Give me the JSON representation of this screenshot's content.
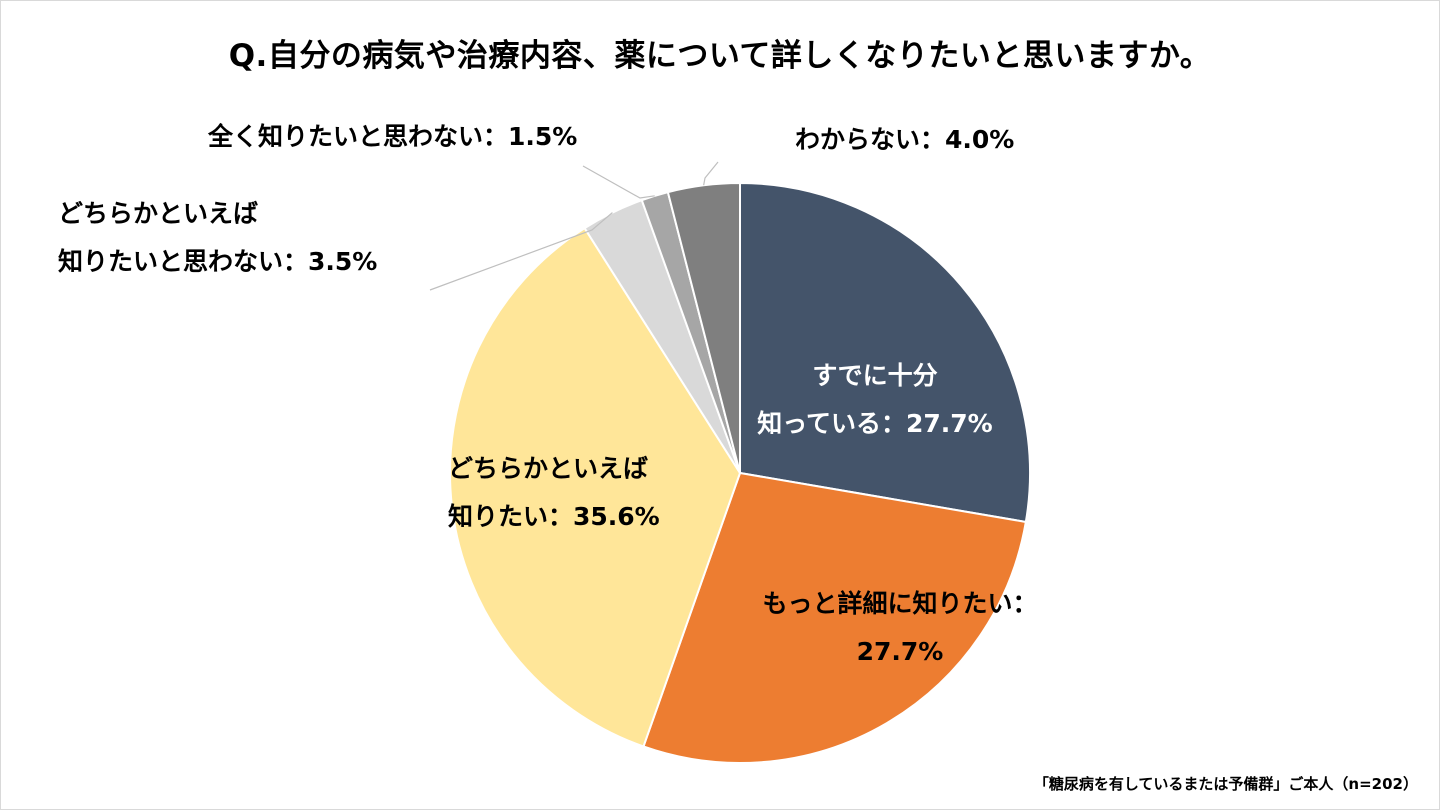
{
  "title": "Q.自分の病気や治療内容、薬について詳しくなりたいと思いますか。",
  "footer": "「糖尿病を有しているまたは予備群」ご本人（n=202）",
  "chart_data": {
    "type": "pie",
    "title": "Q.自分の病気や治療内容、薬について詳しくなりたいと思いますか。",
    "start_angle_deg": 0,
    "direction": "clockwise",
    "slices": [
      {
        "label": "すでに十分知っている",
        "value": 27.7,
        "color": "#44546a",
        "text": [
          "すでに十分",
          "知っている：27.7%"
        ]
      },
      {
        "label": "もっと詳細に知りたい",
        "value": 27.7,
        "color": "#ed7d31",
        "text": [
          "もっと詳細に知りたい：",
          "27.7%"
        ]
      },
      {
        "label": "どちらかといえば知りたい",
        "value": 35.6,
        "color": "#ffe699",
        "text": [
          "どちらかといえば",
          "知りたい：35.6%"
        ]
      },
      {
        "label": "どちらかといえば知りたいと思わない",
        "value": 3.5,
        "color": "#d9d9d9",
        "text": [
          "どちらかといえば",
          "知りたいと思わない：3.5%"
        ]
      },
      {
        "label": "全く知りたいと思わない",
        "value": 1.5,
        "color": "#a6a6a6",
        "text": [
          "全く知りたいと思わない：1.5%"
        ]
      },
      {
        "label": "わからない",
        "value": 4.0,
        "color": "#7f7f7f",
        "text": [
          "わからない：4.0%"
        ]
      }
    ]
  }
}
